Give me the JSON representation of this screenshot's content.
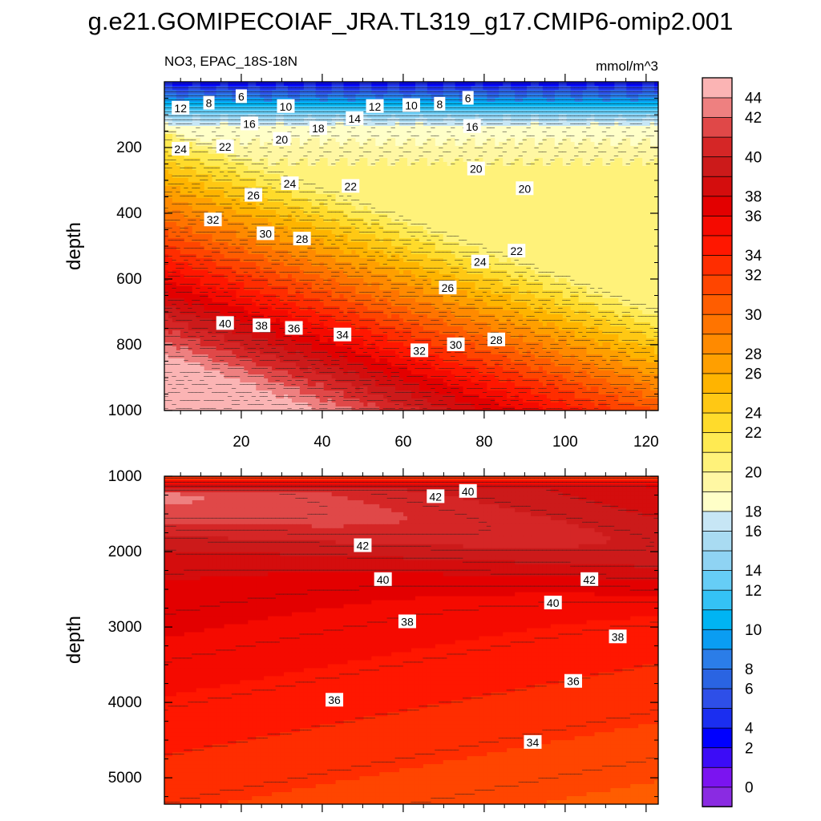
{
  "chart_data": {
    "type": "contour",
    "title": "g.e21.GOMIPECOIAF_JRA.TL319_g17.CMIP6-omip2.001",
    "subtitle_left": "NO3, EPAC_18S-18N",
    "units": "mmol/m^3",
    "xlim": [
      1,
      123
    ],
    "x_ticks": [
      "20",
      "40",
      "60",
      "80",
      "100",
      "120"
    ],
    "panels": [
      {
        "name": "upper",
        "ylabel": "depth",
        "ylim": [
          0,
          1000
        ],
        "y_ticks": [
          "200",
          "400",
          "600",
          "800",
          "1000"
        ],
        "contour_labels": [
          {
            "text": "12",
            "x": 5,
            "y": 80
          },
          {
            "text": "8",
            "x": 12,
            "y": 65
          },
          {
            "text": "6",
            "x": 20,
            "y": 45
          },
          {
            "text": "10",
            "x": 31,
            "y": 75
          },
          {
            "text": "12",
            "x": 53,
            "y": 75
          },
          {
            "text": "10",
            "x": 62,
            "y": 72
          },
          {
            "text": "8",
            "x": 69,
            "y": 68
          },
          {
            "text": "6",
            "x": 76,
            "y": 50
          },
          {
            "text": "16",
            "x": 22,
            "y": 128
          },
          {
            "text": "14",
            "x": 48,
            "y": 112
          },
          {
            "text": "18",
            "x": 39,
            "y": 142
          },
          {
            "text": "16",
            "x": 77,
            "y": 136
          },
          {
            "text": "20",
            "x": 30,
            "y": 175
          },
          {
            "text": "24",
            "x": 5,
            "y": 205
          },
          {
            "text": "22",
            "x": 16,
            "y": 198
          },
          {
            "text": "20",
            "x": 78,
            "y": 265
          },
          {
            "text": "20",
            "x": 90,
            "y": 325
          },
          {
            "text": "24",
            "x": 32,
            "y": 310
          },
          {
            "text": "22",
            "x": 47,
            "y": 318
          },
          {
            "text": "26",
            "x": 23,
            "y": 345
          },
          {
            "text": "32",
            "x": 13,
            "y": 420
          },
          {
            "text": "30",
            "x": 26,
            "y": 462
          },
          {
            "text": "28",
            "x": 35,
            "y": 478
          },
          {
            "text": "24",
            "x": 79,
            "y": 548
          },
          {
            "text": "22",
            "x": 88,
            "y": 515
          },
          {
            "text": "26",
            "x": 71,
            "y": 627
          },
          {
            "text": "40",
            "x": 16,
            "y": 735
          },
          {
            "text": "38",
            "x": 25,
            "y": 742
          },
          {
            "text": "36",
            "x": 33,
            "y": 750
          },
          {
            "text": "34",
            "x": 45,
            "y": 770
          },
          {
            "text": "32",
            "x": 64,
            "y": 818
          },
          {
            "text": "30",
            "x": 73,
            "y": 800
          },
          {
            "text": "28",
            "x": 83,
            "y": 785
          }
        ]
      },
      {
        "name": "lower",
        "ylabel": "depth",
        "ylim": [
          1000,
          5350
        ],
        "y_ticks": [
          "1000",
          "2000",
          "3000",
          "4000",
          "5000"
        ],
        "contour_labels": [
          {
            "text": "40",
            "x": 76,
            "y": 1200
          },
          {
            "text": "42",
            "x": 68,
            "y": 1270
          },
          {
            "text": "42",
            "x": 50,
            "y": 1920
          },
          {
            "text": "40",
            "x": 55,
            "y": 2370
          },
          {
            "text": "42",
            "x": 106,
            "y": 2370
          },
          {
            "text": "40",
            "x": 97,
            "y": 2680
          },
          {
            "text": "38",
            "x": 61,
            "y": 2930
          },
          {
            "text": "38",
            "x": 113,
            "y": 3130
          },
          {
            "text": "36",
            "x": 102,
            "y": 3720
          },
          {
            "text": "36",
            "x": 43,
            "y": 3970
          },
          {
            "text": "34",
            "x": 92,
            "y": 4530
          }
        ]
      }
    ],
    "colorbar": {
      "levels": [
        "0",
        "2",
        "4",
        "6",
        "8",
        "10",
        "12",
        "14",
        "16",
        "18",
        "20",
        "22",
        "24",
        "26",
        "28",
        "30",
        "32",
        "34",
        "36",
        "38",
        "40",
        "42",
        "44"
      ],
      "colors": [
        "#8a2be2",
        "#7b14f0",
        "#3c0cf7",
        "#0000ff",
        "#1b2ef0",
        "#2e4fe8",
        "#2a64e2",
        "#2b7de8",
        "#0a9df2",
        "#00b4f3",
        "#34c2f5",
        "#66cdf6",
        "#8fd3f3",
        "#a9dbf2",
        "#c7e6f5",
        "#ffffc8",
        "#fff7a3",
        "#fff27a",
        "#ffea52",
        "#ffdb2b",
        "#ffc814",
        "#ffb400",
        "#ff9f00",
        "#ff8a00",
        "#ff7400",
        "#ff5d00",
        "#ff4500",
        "#ff2d00",
        "#ff1700",
        "#f50a00",
        "#e30000",
        "#d40d0d",
        "#cc1a1a",
        "#d52626",
        "#e04848",
        "#ee8080",
        "#fbb4b4"
      ]
    }
  }
}
